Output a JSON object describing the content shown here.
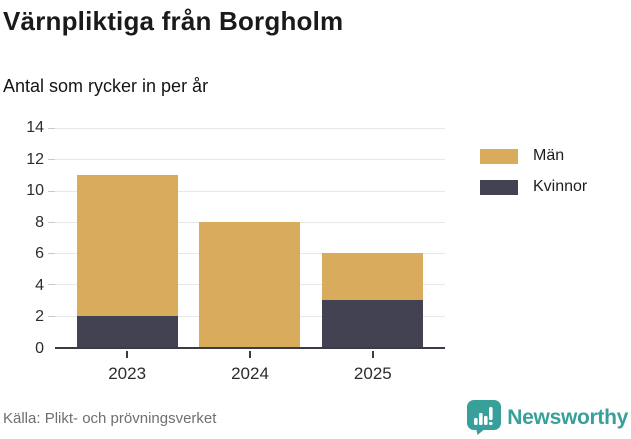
{
  "header": {
    "title": "Värnpliktiga från Borgholm",
    "subtitle": "Antal som rycker in per år"
  },
  "chart_data": {
    "type": "bar",
    "stacked": true,
    "title": "Värnpliktiga från Borgholm",
    "subtitle": "Antal som rycker in per år",
    "categories": [
      "2023",
      "2024",
      "2025"
    ],
    "series": [
      {
        "name": "Män",
        "color": "#d9ab5c",
        "values": [
          9,
          8,
          3
        ]
      },
      {
        "name": "Kvinnor",
        "color": "#434253",
        "values": [
          2,
          0,
          3
        ]
      }
    ],
    "stack_order": [
      "Kvinnor",
      "Män"
    ],
    "ylim": [
      0,
      14
    ],
    "yticks": [
      0,
      2,
      4,
      6,
      8,
      10,
      12,
      14
    ],
    "xlabel": "",
    "ylabel": "",
    "grid": true,
    "gridline_color": "#e8e8e8",
    "axis_color": "#3b3a47",
    "legend_position": "right"
  },
  "legend": {
    "items": [
      {
        "label": "Män",
        "color": "#d9ab5c"
      },
      {
        "label": "Kvinnor",
        "color": "#434253"
      }
    ]
  },
  "footer": {
    "source": "Källa: Plikt- och prövningsverket",
    "brand": "Newsworthy",
    "brand_color": "#37a09a"
  }
}
